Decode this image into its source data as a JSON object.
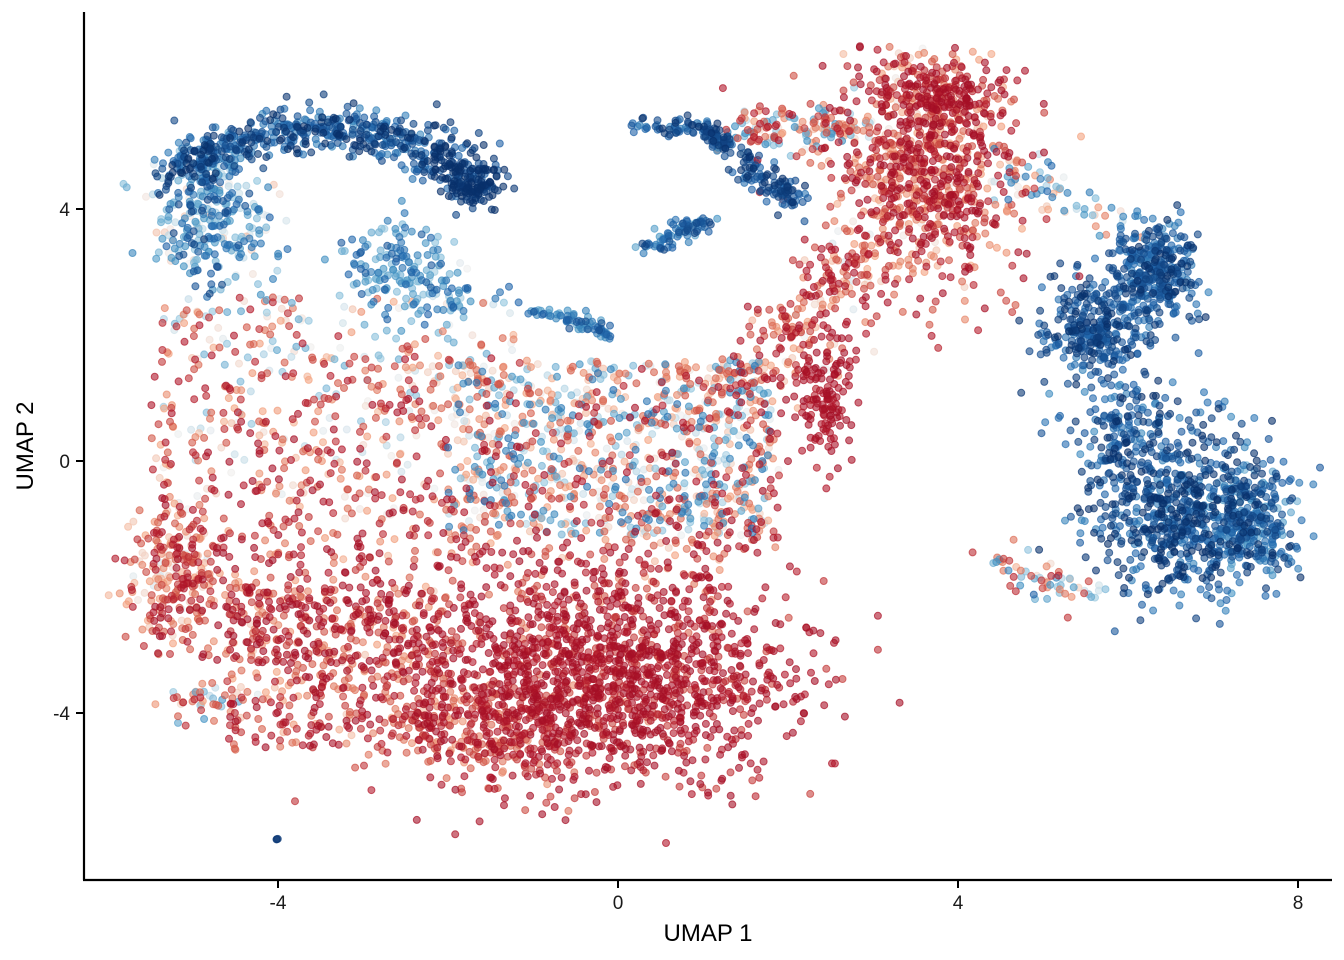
{
  "chart_data": {
    "type": "scatter",
    "title": "",
    "xlabel": "UMAP 1",
    "ylabel": "UMAP 2",
    "xlim": [
      -6.2,
      8.4
    ],
    "ylim": [
      -6.7,
      7.8
    ],
    "xticks": [
      -4,
      0,
      4,
      8
    ],
    "yticks": [
      -4,
      0,
      4
    ],
    "xtick_labels": [
      "-4",
      "0",
      "4",
      "8"
    ],
    "ytick_labels": [
      "-4",
      "0",
      "4"
    ],
    "grid": false,
    "legend": "none",
    "color_scale": {
      "name": "RdBu diverging (value range approx. -1 to 1)",
      "low_color": "#08306b",
      "mid_color": "#f7f7f7",
      "high_color": "#a50f26"
    },
    "point_count_approx": 6000,
    "clusters": [
      {
        "region": "upper-left arc",
        "x": [
          -5.2,
          -1.4
        ],
        "y": [
          3.8,
          5.5
        ],
        "expression": -0.85
      },
      {
        "region": "upper-left inner",
        "x": [
          -2.8,
          -1.4
        ],
        "y": [
          2.4,
          3.8
        ],
        "expression": -0.5
      },
      {
        "region": "left-center",
        "x": [
          -5.4,
          -1.6
        ],
        "y": [
          -3.0,
          2.8
        ],
        "expression": 0.45
      },
      {
        "region": "central band",
        "x": [
          -1.8,
          1.8
        ],
        "y": [
          -1.0,
          1.8
        ],
        "expression": -0.05
      },
      {
        "region": "lower-center core",
        "x": [
          -2.2,
          1.5
        ],
        "y": [
          -5.1,
          -2.0
        ],
        "expression": 0.85
      },
      {
        "region": "upper filament",
        "x": [
          0.2,
          1.8
        ],
        "y": [
          4.6,
          5.4
        ],
        "expression": -0.8
      },
      {
        "region": "middle bridge",
        "x": [
          1.4,
          2.7
        ],
        "y": [
          0.5,
          3.0
        ],
        "expression": 0.5
      },
      {
        "region": "top-right cluster",
        "x": [
          2.6,
          4.5
        ],
        "y": [
          2.2,
          6.4
        ],
        "expression": 0.6
      },
      {
        "region": "right cluster top",
        "x": [
          5.0,
          6.8
        ],
        "y": [
          1.6,
          3.6
        ],
        "expression": -0.85
      },
      {
        "region": "right cluster bottom",
        "x": [
          5.6,
          7.7
        ],
        "y": [
          -2.3,
          1.2
        ],
        "expression": -0.85
      },
      {
        "region": "isolated point",
        "x": [
          -4.0,
          -4.0
        ],
        "y": [
          -6.0,
          -6.0
        ],
        "expression": -0.9
      }
    ]
  }
}
